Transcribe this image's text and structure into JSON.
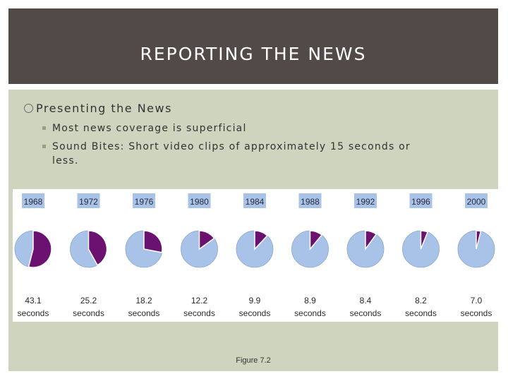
{
  "header": {
    "title": "REPORTING THE NEWS"
  },
  "bullets": {
    "main": "Presenting the News",
    "sub": [
      "Most news coverage is superficial",
      "Sound Bites: Short video clips of approximately 15 seconds or less."
    ]
  },
  "colors": {
    "header_bg": "#524a47",
    "content_bg": "#cfd4be",
    "pie_main": "#a9c3e8",
    "pie_slice": "#6b1170",
    "year_box": "#a9c3e8"
  },
  "chart_data": {
    "type": "pie",
    "years": [
      "1968",
      "1972",
      "1976",
      "1980",
      "1984",
      "1988",
      "1992",
      "1996",
      "2000"
    ],
    "values": [
      43.1,
      25.2,
      18.2,
      12.2,
      9.9,
      8.9,
      8.4,
      8.2,
      7.0
    ],
    "value_labels": [
      "43.1",
      "25.2",
      "18.2",
      "12.2",
      "9.9",
      "8.9",
      "8.4",
      "8.2",
      "7.0"
    ],
    "unit_label": "seconds",
    "pie_fractions": [
      0.54,
      0.42,
      0.28,
      0.15,
      0.12,
      0.11,
      0.1,
      0.06,
      0.04
    ]
  },
  "caption": "Figure 7.2"
}
